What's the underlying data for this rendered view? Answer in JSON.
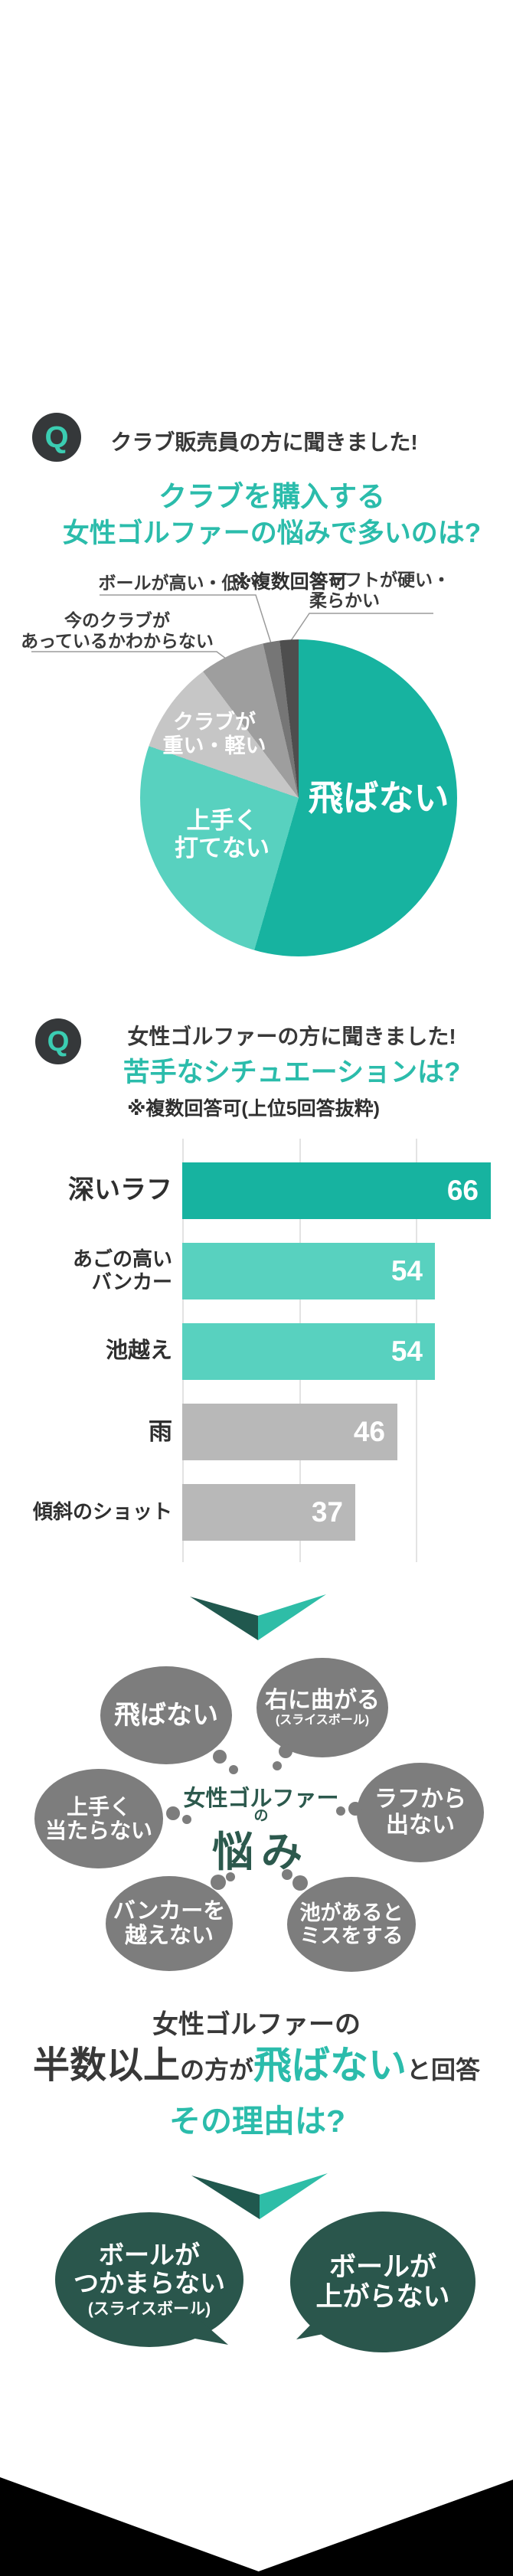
{
  "colors": {
    "teal": "#17b3a0",
    "teal_light": "#58d1bf",
    "teal_text": "#2bbcab",
    "q_teal": "#3bcdb2",
    "badge_bg": "#35383a",
    "ink": "#383838",
    "chevron_dark": "#20584e",
    "chevron_teal": "#2ebda7",
    "gray_bubble": "#7d7d7d",
    "green_dark": "#2a564c",
    "nayami_text": "#2c594d",
    "bar_gray": "#b8b8b8",
    "grid": "#e3e3e3",
    "leader_line": "#9b9b9b"
  },
  "q1": {
    "badge": "Q",
    "heading": "クラブ販売員の方に聞きました!",
    "title_line1": "クラブを購入する",
    "title_line2": "女性ゴルファーの悩みで多いのは?",
    "note": "※複数回答可"
  },
  "pie_labels": {
    "ball": "ボールが高い・低い",
    "shaft": "シャフトが硬い・\n柔らかい",
    "club_fit": "今のクラブが\nあっているかわからない",
    "heavy": "クラブが\n重い・軽い",
    "cant_hit": "上手く\n打てない",
    "no_fly": "飛ばない"
  },
  "q2": {
    "badge": "Q",
    "heading": "女性ゴルファーの方に聞きました!",
    "title": "苦手なシチュエーションは?",
    "note": "※複数回答可(上位5回答抜粋)"
  },
  "chart_data": [
    {
      "type": "pie",
      "title": "クラブを購入する女性ゴルファーの悩みで多いのは?",
      "note": "※複数回答可",
      "slices": [
        {
          "label": "飛ばない",
          "percent": 54.5,
          "color": "#17b3a0"
        },
        {
          "label": "上手く打てない",
          "percent": 25.8,
          "color": "#58d1bf"
        },
        {
          "label": "クラブが重い・軽い",
          "percent": 9.4,
          "color": "#c6c6c6"
        },
        {
          "label": "今のクラブがあっているかわからない",
          "percent": 6.7,
          "color": "#9e9e9e"
        },
        {
          "label": "ボールが高い・低い",
          "percent": 1.7,
          "color": "#767676"
        },
        {
          "label": "シャフトが硬い・柔らかい",
          "percent": 1.9,
          "color": "#4e4e4e"
        }
      ],
      "start_angle_deg": 0,
      "clockwise": true,
      "legend_position": "labels-on-slices"
    },
    {
      "type": "bar",
      "orientation": "horizontal",
      "title": "苦手なシチュエーションは?",
      "note": "※複数回答可(上位5回答抜粋)",
      "categories": [
        "深いラフ",
        "あごの高い\nバンカー",
        "池越え",
        "雨",
        "傾斜のショット"
      ],
      "values": [
        66,
        54,
        54,
        46,
        37
      ],
      "bar_colors": [
        "#17b3a0",
        "#58d1bf",
        "#58d1bf",
        "#b8b8b8",
        "#b8b8b8"
      ],
      "xlim": [
        0,
        66
      ],
      "gridline_values": [
        0,
        25,
        50
      ],
      "value_label_color": "#ffffff",
      "grid": true
    }
  ],
  "cluster": {
    "center_line1": "女性ゴルファー",
    "center_line2": "の",
    "center_line3": "悩み",
    "bubbles": [
      {
        "text": "飛ばない"
      },
      {
        "text": "右に曲がる",
        "sub": "(スライスボール)"
      },
      {
        "text": "上手く\n当たらない"
      },
      {
        "text": "ラフから\n出ない"
      },
      {
        "text": "バンカーを\n越えない"
      },
      {
        "text": "池があると\nミスをする"
      }
    ]
  },
  "conclusion": {
    "line1": "女性ゴルファーの",
    "part_big1": "半数以上",
    "part_small1": "の方が",
    "part_teal": "飛ばない",
    "part_small2": "と回答",
    "question": "その理由は?"
  },
  "answers": {
    "left_text": "ボールが\nつかまらない",
    "left_sub": "(スライスボール)",
    "right_text": "ボールが\n上がらない"
  }
}
